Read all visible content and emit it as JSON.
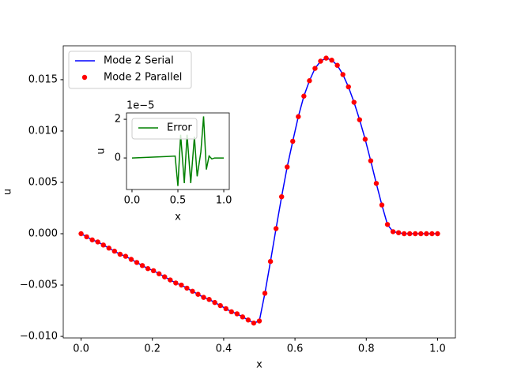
{
  "chart_data": [
    {
      "type": "line",
      "xlabel": "x",
      "ylabel": "u",
      "legend": "upper left",
      "x": [
        0,
        0.015625,
        0.03125,
        0.046875,
        0.0625,
        0.078125,
        0.09375,
        0.109375,
        0.125,
        0.140625,
        0.15625,
        0.171875,
        0.1875,
        0.203125,
        0.21875,
        0.234375,
        0.25,
        0.265625,
        0.28125,
        0.296875,
        0.3125,
        0.328125,
        0.34375,
        0.359375,
        0.375,
        0.390625,
        0.40625,
        0.421875,
        0.4375,
        0.453125,
        0.46875,
        0.484375,
        0.5,
        0.515625,
        0.53125,
        0.546875,
        0.5625,
        0.578125,
        0.59375,
        0.609375,
        0.625,
        0.640625,
        0.65625,
        0.671875,
        0.6875,
        0.703125,
        0.71875,
        0.734375,
        0.75,
        0.765625,
        0.78125,
        0.796875,
        0.8125,
        0.828125,
        0.84375,
        0.859375,
        0.875,
        0.890625,
        0.90625,
        0.921875,
        0.9375,
        0.953125,
        0.96875,
        0.984375,
        1
      ],
      "series": [
        {
          "name": "Mode 2 Serial",
          "color": "#0000ff",
          "style": "line",
          "values": [
            0,
            -0.0003,
            -0.0006,
            -0.0008,
            -0.0011,
            -0.0014,
            -0.0017,
            -0.002,
            -0.0022,
            -0.0025,
            -0.0028,
            -0.0031,
            -0.0034,
            -0.0036,
            -0.0039,
            -0.0042,
            -0.0045,
            -0.0048,
            -0.005,
            -0.0053,
            -0.0056,
            -0.0059,
            -0.0062,
            -0.0064,
            -0.0067,
            -0.007,
            -0.0073,
            -0.0076,
            -0.0078,
            -0.0081,
            -0.0084,
            -0.0087,
            -0.0085,
            -0.0058,
            -0.0027,
            0.0005,
            0.0036,
            0.0065,
            0.009,
            0.0114,
            0.0134,
            0.0149,
            0.0161,
            0.0168,
            0.0171,
            0.0169,
            0.0164,
            0.0155,
            0.0143,
            0.0128,
            0.0111,
            0.0092,
            0.0071,
            0.0049,
            0.0028,
            0.0009,
            0.0002,
            0.0001,
            0,
            0,
            0,
            0,
            0,
            0,
            0
          ]
        },
        {
          "name": "Mode 2 Parallel",
          "color": "#ff0000",
          "style": "points",
          "values": [
            0,
            -0.0003,
            -0.0006,
            -0.0008,
            -0.0011,
            -0.0014,
            -0.0017,
            -0.002,
            -0.0022,
            -0.0025,
            -0.0028,
            -0.0031,
            -0.0034,
            -0.0036,
            -0.0039,
            -0.0042,
            -0.0045,
            -0.0048,
            -0.005,
            -0.0053,
            -0.0056,
            -0.0059,
            -0.0062,
            -0.0064,
            -0.0067,
            -0.007,
            -0.0073,
            -0.0076,
            -0.0078,
            -0.0081,
            -0.0084,
            -0.0087,
            -0.0085,
            -0.0058,
            -0.0027,
            0.0005,
            0.0036,
            0.0065,
            0.009,
            0.0114,
            0.0134,
            0.0149,
            0.0161,
            0.0168,
            0.0171,
            0.0169,
            0.0164,
            0.0155,
            0.0143,
            0.0128,
            0.0111,
            0.0092,
            0.0071,
            0.0049,
            0.0028,
            0.0009,
            0.0002,
            0.0001,
            0,
            0,
            0,
            0,
            0,
            0,
            0
          ]
        }
      ],
      "xlim": [
        -0.05,
        1.05
      ],
      "xticks": [
        {
          "value": 0,
          "label": "0.0"
        },
        0.2,
        0.4,
        0.6,
        0.8,
        {
          "value": 1,
          "label": "1.0"
        }
      ],
      "ylim": [
        -0.01015,
        0.0183
      ],
      "yticks": [
        {
          "value": -0.01,
          "label": "−0.010"
        },
        {
          "value": -0.005,
          "label": "−0.005"
        },
        {
          "value": 0,
          "label": "0.000"
        },
        {
          "value": 0.005,
          "label": "0.005"
        },
        {
          "value": 0.01,
          "label": "0.010"
        },
        {
          "value": 0.015,
          "label": "0.015"
        }
      ]
    },
    {
      "type": "line",
      "xlabel": "x",
      "ylabel": "u",
      "legend": "upper left",
      "offset_text": "1e−5",
      "x": [
        0,
        0.1,
        0.2,
        0.3,
        0.4,
        0.47,
        0.5,
        0.53,
        0.57,
        0.6,
        0.64,
        0.68,
        0.71,
        0.75,
        0.78,
        0.81,
        0.84,
        0.87,
        0.9,
        1
      ],
      "series": [
        {
          "name": "Error",
          "color": "#008000",
          "style": "line",
          "values": [
            0,
            2e-07,
            4e-07,
            6e-07,
            8e-07,
            1e-06,
            -1.45e-05,
            1.2e-05,
            -1.3e-05,
            1.2e-05,
            -1.3e-05,
            1.1e-05,
            -9.5e-06,
            3e-06,
            2.15e-05,
            -6e-06,
            1e-06,
            -5e-07,
            0,
            0
          ]
        }
      ],
      "xlim": [
        -0.06,
        1.06
      ],
      "xticks": [
        {
          "value": 0,
          "label": "0.0"
        },
        {
          "value": 0.5,
          "label": "0.5"
        },
        {
          "value": 1,
          "label": "1.0"
        }
      ],
      "ylim": [
        -1.63e-05,
        2.33e-05
      ],
      "yticks": [
        0,
        {
          "value": 2e-05,
          "label": "2"
        }
      ]
    }
  ]
}
